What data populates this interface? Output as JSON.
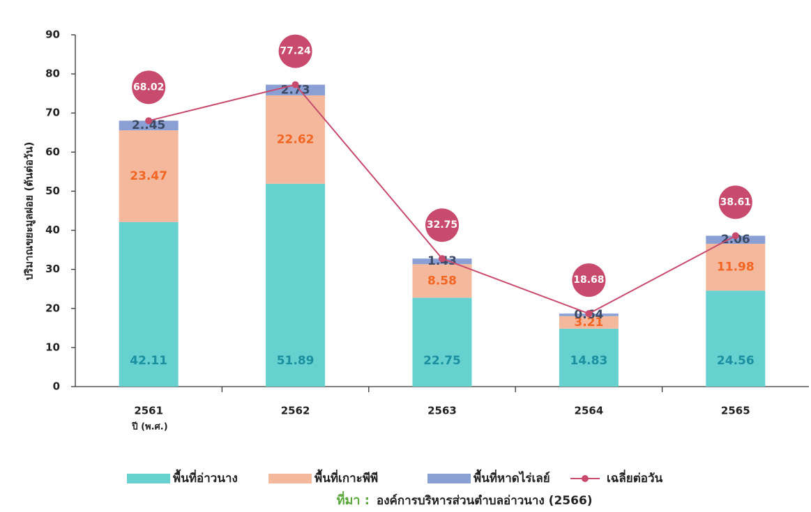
{
  "chart_data": {
    "type": "stacked-bar-line",
    "y_label": "ปริมาณขยะมูลฝอย (ตันต่อวัน)",
    "x_label": "ปี (พ.ศ.)",
    "categories": [
      "2561",
      "2562",
      "2563",
      "2564",
      "2565"
    ],
    "series": [
      {
        "name": "พื้นที่อ่าวนาง",
        "color": "#66d1cf",
        "label_color": "#1a8fa0",
        "values": [
          42.11,
          51.89,
          22.75,
          14.83,
          24.56
        ]
      },
      {
        "name": "พื้นที่เกาะพีพี",
        "color": "#f4b89d",
        "label_color": "#f26522",
        "values": [
          23.47,
          22.62,
          8.58,
          3.21,
          11.98
        ]
      },
      {
        "name": "พื้นที่หาดไร่เลย์",
        "color": "#8a9fd4",
        "label_color": "#3d4a66",
        "values": [
          2.45,
          2.73,
          1.43,
          0.64,
          2.06
        ],
        "value_labels": [
          "2..45",
          "2.73",
          "1.43",
          "0.64",
          "2.06"
        ]
      },
      {
        "name": "เฉลี่ยต่อวัน",
        "type": "line",
        "color": "#c84b6e",
        "values": [
          68.02,
          77.24,
          32.75,
          18.68,
          38.61
        ]
      }
    ],
    "ylim": [
      0,
      90
    ],
    "yticks": [
      0,
      10,
      20,
      30,
      40,
      50,
      60,
      70,
      80,
      90
    ],
    "source_label": "ที่มา :",
    "source": "องค์การบริหารส่วนตำบลอ่าวนาง (2566)"
  }
}
